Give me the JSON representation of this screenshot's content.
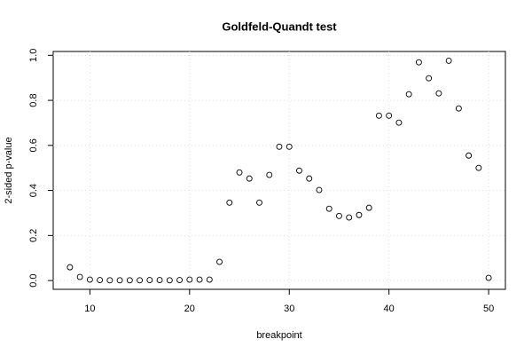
{
  "chart_data": {
    "type": "scatter",
    "title": "Goldfeld-Quandt test",
    "x_label": "breakpoint",
    "y_label": "2-sided p-value",
    "x": [
      8,
      9,
      10,
      11,
      12,
      13,
      14,
      15,
      16,
      17,
      18,
      19,
      20,
      21,
      22,
      23,
      24,
      25,
      26,
      27,
      28,
      29,
      30,
      31,
      32,
      33,
      34,
      35,
      36,
      37,
      38,
      39,
      40,
      41,
      42,
      43,
      44,
      45,
      46,
      47,
      48,
      49,
      50
    ],
    "values": [
      0.059,
      0.016,
      0.004,
      0.002,
      0.001,
      0.001,
      0.001,
      0.001,
      0.002,
      0.002,
      0.001,
      0.002,
      0.004,
      0.004,
      0.004,
      0.083,
      0.346,
      0.48,
      0.453,
      0.346,
      0.469,
      0.594,
      0.594,
      0.488,
      0.453,
      0.402,
      0.319,
      0.287,
      0.28,
      0.291,
      0.323,
      0.732,
      0.732,
      0.701,
      0.827,
      0.969,
      0.898,
      0.831,
      0.976,
      0.764,
      0.555,
      0.5,
      0.012
    ],
    "color": "#000000",
    "xlim": [
      6.32,
      51.68
    ],
    "xticks": [
      10,
      20,
      30,
      40,
      50
    ],
    "ylim": [
      -0.039,
      1.017
    ],
    "yticks": [
      {
        "value": 0,
        "label": "0.0"
      },
      0.2,
      0.4,
      0.6,
      0.8,
      {
        "value": 1,
        "label": "1.0"
      }
    ],
    "grid": true
  }
}
